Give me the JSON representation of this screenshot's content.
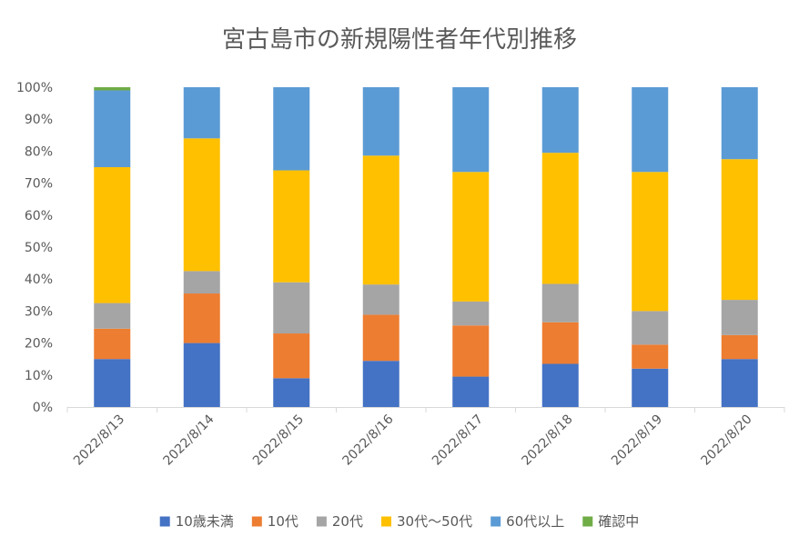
{
  "chart_data": {
    "type": "bar",
    "stacked": true,
    "percent": true,
    "title": "宮古島市の新規陽性者年代別推移",
    "xlabel": "",
    "ylabel": "",
    "ylim": [
      0,
      100
    ],
    "yticks": [
      "0%",
      "10%",
      "20%",
      "30%",
      "40%",
      "50%",
      "60%",
      "70%",
      "80%",
      "90%",
      "100%"
    ],
    "categories": [
      "2022/8/13",
      "2022/8/14",
      "2022/8/15",
      "2022/8/16",
      "2022/8/17",
      "2022/8/18",
      "2022/8/19",
      "2022/8/20"
    ],
    "legend_position": "bottom",
    "grid": false,
    "series": [
      {
        "name": "10歳未満",
        "color": "#4472C4",
        "values": [
          15,
          20,
          9,
          14.5,
          9.5,
          13.5,
          12,
          15
        ]
      },
      {
        "name": "10代",
        "color": "#ED7D31",
        "values": [
          9.5,
          15.5,
          14,
          14.5,
          16,
          13,
          7.5,
          7.5
        ]
      },
      {
        "name": "20代",
        "color": "#A5A5A5",
        "values": [
          8,
          7,
          16,
          9.5,
          7.5,
          12,
          10.5,
          11
        ]
      },
      {
        "name": "30代～50代",
        "color": "#FFC000",
        "values": [
          42.5,
          41.5,
          35,
          40.5,
          40.5,
          41,
          43.5,
          44
        ]
      },
      {
        "name": "60代以上",
        "color": "#5B9BD5",
        "values": [
          24,
          16,
          26,
          21.5,
          26.5,
          20.5,
          26.5,
          22.5
        ]
      },
      {
        "name": "確認中",
        "color": "#70AD47",
        "values": [
          1,
          0,
          0,
          0,
          0,
          0,
          0,
          0
        ]
      }
    ]
  }
}
